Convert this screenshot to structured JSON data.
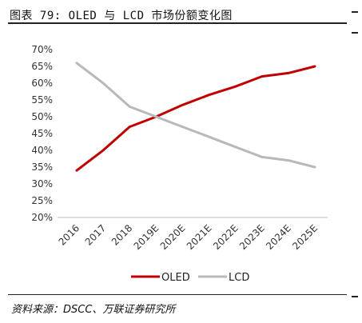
{
  "header": {
    "title": "图表 79:  OLED 与 LCD 市场份额变化图"
  },
  "source": {
    "text": "资料来源：DSCC、万联证券研究所"
  },
  "chart_data": {
    "type": "line",
    "categories": [
      "2016",
      "2017",
      "2018",
      "2019E",
      "2020E",
      "2021E",
      "2022E",
      "2023E",
      "2024E",
      "2025E"
    ],
    "ylim": [
      20,
      70
    ],
    "yticks": [
      "20%",
      "25%",
      "30%",
      "35%",
      "40%",
      "45%",
      "50%",
      "55%",
      "60%",
      "65%",
      "70%"
    ],
    "series": [
      {
        "name": "OLED",
        "color": "#c00000",
        "values": [
          34,
          40,
          47,
          50,
          53.5,
          56.5,
          59,
          62,
          63,
          65
        ]
      },
      {
        "name": "LCD",
        "color": "#b8b8b8",
        "values": [
          66,
          60,
          53,
          50,
          47,
          44,
          41,
          38,
          37,
          35
        ]
      }
    ],
    "legend": "bottom",
    "grid": false
  }
}
